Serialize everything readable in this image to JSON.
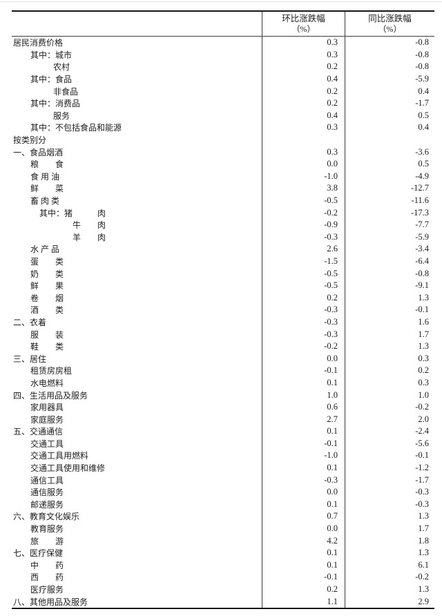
{
  "table": {
    "headers": [
      {
        "title": "环比涨跌幅",
        "unit": "（%）"
      },
      {
        "title": "同比涨跌幅",
        "unit": "（%）"
      }
    ],
    "rows": [
      {
        "indent": 0,
        "label": "居民消费价格",
        "mom": "0.3",
        "yoy": "-0.8"
      },
      {
        "indent": 1,
        "label": "其中：城市",
        "mom": "0.3",
        "yoy": "-0.8"
      },
      {
        "indent": 2,
        "label": "农村",
        "mom": "0.2",
        "yoy": "-0.8"
      },
      {
        "indent": 1,
        "label": "其中：食品",
        "mom": "0.4",
        "yoy": "-5.9"
      },
      {
        "indent": 2,
        "label": "非食品",
        "mom": "0.2",
        "yoy": "0.4"
      },
      {
        "indent": 1,
        "label": "其中：消费品",
        "mom": "0.2",
        "yoy": "-1.7"
      },
      {
        "indent": 2,
        "label": "服务",
        "mom": "0.4",
        "yoy": "0.5"
      },
      {
        "indent": 1,
        "label": "其中：不包括食品和能源",
        "mom": "0.3",
        "yoy": "0.4"
      },
      {
        "indent": 0,
        "label": "按类别分",
        "mom": "",
        "yoy": ""
      },
      {
        "indent": 0,
        "label": "一、食品烟酒",
        "mom": "0.3",
        "yoy": "-3.6"
      },
      {
        "indent": 1,
        "label": "粮　　食",
        "mom": "0.0",
        "yoy": "0.5"
      },
      {
        "indent": 1,
        "label": "食 用 油",
        "mom": "-1.0",
        "yoy": "-4.9"
      },
      {
        "indent": 1,
        "label": "鲜　　菜",
        "mom": "3.8",
        "yoy": "-12.7"
      },
      {
        "indent": 1,
        "label": "畜 肉 类",
        "mom": "-0.5",
        "yoy": "-11.6"
      },
      {
        "indent": 3,
        "label": "其中：猪　　　肉",
        "mom": "-0.2",
        "yoy": "-17.3"
      },
      {
        "indent": 4,
        "label": "牛　　肉",
        "mom": "-0.9",
        "yoy": "-7.7"
      },
      {
        "indent": 4,
        "label": "羊　　肉",
        "mom": "-0.3",
        "yoy": "-5.9"
      },
      {
        "indent": 1,
        "label": "水 产 品",
        "mom": "2.6",
        "yoy": "-3.4"
      },
      {
        "indent": 1,
        "label": "蛋　　类",
        "mom": "-1.5",
        "yoy": "-6.4"
      },
      {
        "indent": 1,
        "label": "奶　　类",
        "mom": "-0.5",
        "yoy": "-0.8"
      },
      {
        "indent": 1,
        "label": "鲜　　果",
        "mom": "-0.5",
        "yoy": "-9.1"
      },
      {
        "indent": 1,
        "label": "卷　　烟",
        "mom": "0.2",
        "yoy": "1.3"
      },
      {
        "indent": 1,
        "label": "酒　　类",
        "mom": "-0.3",
        "yoy": "-0.1"
      },
      {
        "indent": 0,
        "label": "二、衣着",
        "mom": "-0.3",
        "yoy": "1.6"
      },
      {
        "indent": 1,
        "label": "服　　装",
        "mom": "-0.3",
        "yoy": "1.7"
      },
      {
        "indent": 1,
        "label": "鞋　　类",
        "mom": "-0.2",
        "yoy": "1.3"
      },
      {
        "indent": 0,
        "label": "三、居住",
        "mom": "0.0",
        "yoy": "0.3"
      },
      {
        "indent": 1,
        "label": "租赁房房租",
        "mom": "-0.1",
        "yoy": "0.2"
      },
      {
        "indent": 1,
        "label": "水电燃料",
        "mom": "0.1",
        "yoy": "0.3"
      },
      {
        "indent": 0,
        "label": "四、生活用品及服务",
        "mom": "1.0",
        "yoy": "1.0"
      },
      {
        "indent": 1,
        "label": "家用器具",
        "mom": "0.6",
        "yoy": "-0.2"
      },
      {
        "indent": 1,
        "label": "家庭服务",
        "mom": "2.7",
        "yoy": "2.0"
      },
      {
        "indent": 0,
        "label": "五、交通通信",
        "mom": "0.1",
        "yoy": "-2.4"
      },
      {
        "indent": 1,
        "label": "交通工具",
        "mom": "-0.1",
        "yoy": "-5.6"
      },
      {
        "indent": 1,
        "label": "交通工具用燃料",
        "mom": "-1.0",
        "yoy": "-0.1"
      },
      {
        "indent": 1,
        "label": "交通工具使用和维修",
        "mom": "0.1",
        "yoy": "-1.2"
      },
      {
        "indent": 1,
        "label": "通信工具",
        "mom": "-0.3",
        "yoy": "-1.7"
      },
      {
        "indent": 1,
        "label": "通信服务",
        "mom": "0.0",
        "yoy": "-0.3"
      },
      {
        "indent": 1,
        "label": "邮递服务",
        "mom": "0.1",
        "yoy": "-0.3"
      },
      {
        "indent": 0,
        "label": "六、教育文化娱乐",
        "mom": "0.7",
        "yoy": "1.3"
      },
      {
        "indent": 1,
        "label": "教育服务",
        "mom": "0.0",
        "yoy": "1.7"
      },
      {
        "indent": 1,
        "label": "旅　　游",
        "mom": "4.2",
        "yoy": "1.8"
      },
      {
        "indent": 0,
        "label": "七、医疗保健",
        "mom": "0.1",
        "yoy": "1.3"
      },
      {
        "indent": 1,
        "label": "中　　药",
        "mom": "0.1",
        "yoy": "6.1"
      },
      {
        "indent": 1,
        "label": "西　　药",
        "mom": "-0.1",
        "yoy": "-0.2"
      },
      {
        "indent": 1,
        "label": "医疗服务",
        "mom": "0.2",
        "yoy": "1.3"
      },
      {
        "indent": 0,
        "label": "八、其他用品及服务",
        "mom": "1.1",
        "yoy": "2.9"
      }
    ]
  }
}
